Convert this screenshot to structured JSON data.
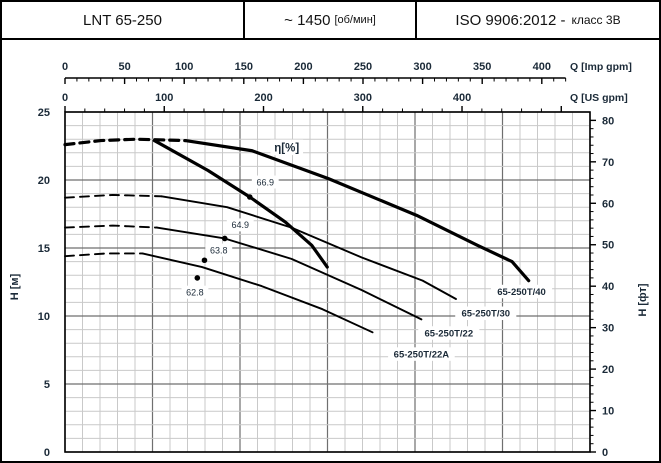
{
  "header": {
    "model": "LNT 65-250",
    "speed": "~ 1450",
    "speed_unit": "[об/мин]",
    "standard": "ISO 9906:2012 -",
    "standard_class": "класс 3В"
  },
  "axes": {
    "q_imp": {
      "label": "Q [Imp gpm]",
      "ticks": [
        0,
        50,
        100,
        150,
        200,
        250,
        300,
        350,
        400
      ],
      "minor_step": 10,
      "max": 420
    },
    "q_us": {
      "label": "Q [US gpm]",
      "ticks": [
        0,
        100,
        200,
        300,
        400
      ],
      "minor_step": 20,
      "max": 500
    },
    "h_m": {
      "label": "H [м]",
      "ticks": [
        0,
        5,
        10,
        15,
        20,
        25
      ]
    },
    "h_ft": {
      "label": "H [фт]",
      "ticks": [
        0,
        10,
        20,
        30,
        40,
        50,
        60,
        70,
        80
      ],
      "minor_step": 2
    }
  },
  "chart_data": {
    "type": "line",
    "title": "LNT 65-250 pump performance curves",
    "xlabel_top1": "Q [Imp gpm]",
    "xlabel_top2": "Q [US gpm]",
    "ylabel_left": "H [м]",
    "ylabel_right": "H [фт]",
    "x_unit": "Imp gpm",
    "y_unit": "m",
    "xlim": [
      0,
      440
    ],
    "ylim": [
      0,
      25
    ],
    "grid": "on",
    "series": [
      {
        "name": "65-250T/40",
        "style": "thick",
        "dash_until_q": 101,
        "points": [
          [
            0,
            22.6
          ],
          [
            30,
            22.9
          ],
          [
            60,
            23.0
          ],
          [
            101,
            22.9
          ],
          [
            157,
            22.15
          ],
          [
            221,
            20.1
          ],
          [
            295,
            17.4
          ],
          [
            346,
            15.2
          ],
          [
            375,
            14.0
          ],
          [
            389,
            12.6
          ]
        ],
        "label": "65-250T/40",
        "label_q": 383,
        "label_h": 11.8
      },
      {
        "name": "65-250T/30",
        "style": "thin",
        "dash_until_q": 81,
        "points": [
          [
            0,
            18.7
          ],
          [
            40,
            18.9
          ],
          [
            81,
            18.8
          ],
          [
            136,
            18.0
          ],
          [
            190,
            16.5
          ],
          [
            249,
            14.3
          ],
          [
            300,
            12.6
          ],
          [
            328,
            11.25
          ]
        ],
        "label": "65-250T/30",
        "label_q": 353,
        "label_h": 10.2
      },
      {
        "name": "65-250T/22",
        "style": "thin",
        "dash_until_q": 77,
        "points": [
          [
            0,
            16.5
          ],
          [
            40,
            16.65
          ],
          [
            77,
            16.5
          ],
          [
            134,
            15.7
          ],
          [
            190,
            14.2
          ],
          [
            249,
            11.9
          ],
          [
            299,
            9.75
          ]
        ],
        "label": "65-250T/22",
        "label_q": 322,
        "label_h": 8.75
      },
      {
        "name": "65-250T/22A",
        "style": "thin",
        "dash_until_q": 65,
        "points": [
          [
            0,
            14.4
          ],
          [
            35,
            14.6
          ],
          [
            65,
            14.6
          ],
          [
            115,
            13.6
          ],
          [
            165,
            12.2
          ],
          [
            216,
            10.5
          ],
          [
            258,
            8.8
          ]
        ],
        "label": "65-250T/22A",
        "label_q": 299,
        "label_h": 7.2
      }
    ],
    "efficiency_curve": {
      "name": "eta-line",
      "style": "thick",
      "points": [
        [
          75,
          22.9
        ],
        [
          120,
          20.7
        ],
        [
          155,
          18.75
        ],
        [
          185,
          16.9
        ],
        [
          207,
          15.2
        ],
        [
          220,
          13.6
        ]
      ],
      "label": "η[%]",
      "label_q": 186,
      "label_h": 22.4
    },
    "efficiency_points": [
      {
        "value": "66.9",
        "q": 155,
        "h": 18.75,
        "label_q": 168,
        "label_h": 19.85
      },
      {
        "value": "64.9",
        "q": 134,
        "h": 15.7,
        "label_q": 147,
        "label_h": 16.7
      },
      {
        "value": "63.8",
        "q": 117,
        "h": 14.1,
        "label_q": 129,
        "label_h": 14.85
      },
      {
        "value": "62.8",
        "q": 111,
        "h": 12.8,
        "label_q": 109,
        "label_h": 11.75
      }
    ]
  },
  "colors": {
    "curve": "#000000",
    "text": "#1b2a38",
    "grid_minor": "#c9c9c9",
    "grid_major": "#6f6f6f",
    "plot_border": "#000000",
    "label_bg": "#ffffff"
  }
}
